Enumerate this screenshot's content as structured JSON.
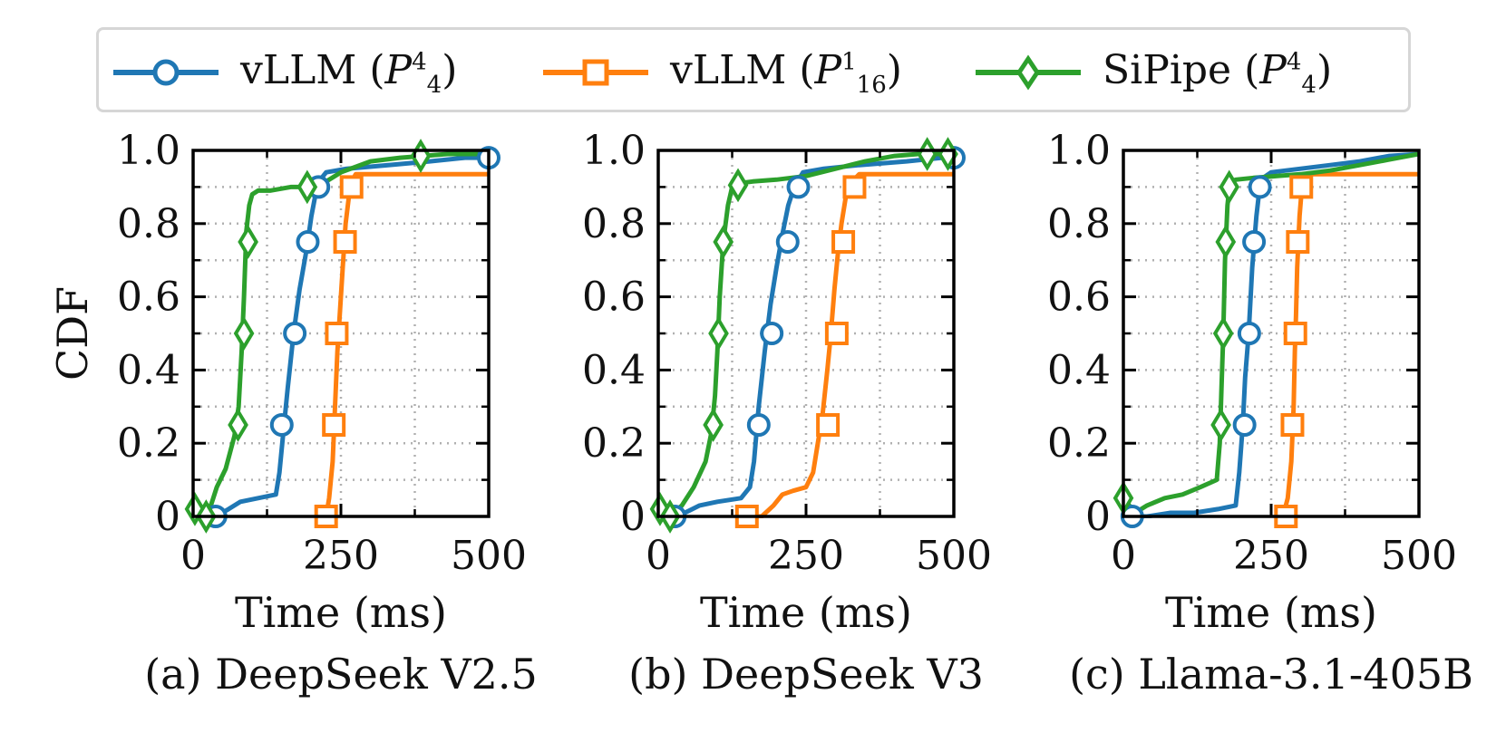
{
  "legend": {
    "entries": [
      {
        "name": "vLLM",
        "label_prefix": "vLLM (",
        "p_sup": "4",
        "p_sub": "4",
        "label_suffix": ")",
        "color": "#1f77b4",
        "marker": "circle"
      },
      {
        "name": "vLLM",
        "label_prefix": "vLLM (",
        "p_sup": "1",
        "p_sub": "16",
        "label_suffix": ")",
        "color": "#ff7f0e",
        "marker": "square"
      },
      {
        "name": "SiPipe",
        "label_prefix": "SiPipe (",
        "p_sup": "4",
        "p_sub": "4",
        "label_suffix": ")",
        "color": "#2ca02c",
        "marker": "diamond"
      }
    ]
  },
  "chart_data": [
    {
      "type": "line",
      "caption": "(a) DeepSeek V2.5",
      "xlabel": "Time (ms)",
      "ylabel": "CDF",
      "xlim": [
        0,
        500
      ],
      "ylim": [
        0,
        1.0
      ],
      "xticks": [
        0,
        250,
        500
      ],
      "yticks": [
        0,
        0.2,
        0.4,
        0.6,
        0.8,
        1.0
      ],
      "ytick_labels": [
        "0",
        "0.2",
        "0.4",
        "0.6",
        "0.8",
        "1.0"
      ],
      "grid": true,
      "series": [
        {
          "name": "vLLM (P44)",
          "color": "#1f77b4",
          "marker": "circle",
          "x": [
            38,
            60,
            80,
            110,
            140,
            146,
            152,
            160,
            170,
            180,
            192,
            200,
            207,
            215,
            225,
            260,
            330,
            400,
            460,
            500
          ],
          "y": [
            0.0,
            0.02,
            0.04,
            0.05,
            0.06,
            0.12,
            0.22,
            0.35,
            0.5,
            0.62,
            0.73,
            0.82,
            0.88,
            0.92,
            0.94,
            0.95,
            0.96,
            0.97,
            0.98,
            0.98
          ],
          "marker_points": [
            [
              38,
              0.0
            ],
            [
              150,
              0.25
            ],
            [
              172,
              0.5
            ],
            [
              194,
              0.75
            ],
            [
              212,
              0.9
            ],
            [
              500,
              0.98
            ]
          ]
        },
        {
          "name": "vLLM (P116)",
          "color": "#ff7f0e",
          "marker": "square",
          "x": [
            225,
            230,
            236,
            240,
            244,
            248,
            253,
            258,
            264,
            270,
            275,
            500
          ],
          "y": [
            0.0,
            0.05,
            0.15,
            0.3,
            0.45,
            0.55,
            0.68,
            0.8,
            0.88,
            0.92,
            0.935,
            0.935
          ],
          "marker_points": [
            [
              225,
              0.0
            ],
            [
              238,
              0.25
            ],
            [
              243,
              0.5
            ],
            [
              257,
              0.75
            ],
            [
              268,
              0.9
            ]
          ]
        },
        {
          "name": "SiPipe (P44)",
          "color": "#2ca02c",
          "marker": "diamond",
          "x": [
            3,
            15,
            22,
            30,
            40,
            55,
            70,
            77,
            82,
            86,
            90,
            95,
            100,
            110,
            130,
            165,
            195,
            220,
            250,
            300,
            350,
            390,
            430,
            500
          ],
          "y": [
            0.02,
            0.0,
            0.0,
            0.03,
            0.08,
            0.13,
            0.22,
            0.3,
            0.45,
            0.6,
            0.78,
            0.85,
            0.88,
            0.89,
            0.89,
            0.9,
            0.9,
            0.91,
            0.94,
            0.97,
            0.98,
            0.985,
            0.99,
            0.99
          ],
          "marker_points": [
            [
              3,
              0.02
            ],
            [
              22,
              0.0
            ],
            [
              76,
              0.25
            ],
            [
              86,
              0.5
            ],
            [
              93,
              0.75
            ],
            [
              193,
              0.9
            ],
            [
              385,
              0.985
            ]
          ]
        }
      ]
    },
    {
      "type": "line",
      "caption": "(b) DeepSeek V3",
      "xlabel": "Time (ms)",
      "ylabel": "",
      "xlim": [
        0,
        500
      ],
      "ylim": [
        0,
        1.0
      ],
      "xticks": [
        0,
        250,
        500
      ],
      "yticks": [
        0,
        0.2,
        0.4,
        0.6,
        0.8,
        1.0
      ],
      "ytick_labels": [
        "0",
        "0.2",
        "0.4",
        "0.6",
        "0.8",
        "1.0"
      ],
      "grid": true,
      "series": [
        {
          "name": "vLLM (P44)",
          "color": "#1f77b4",
          "marker": "circle",
          "x": [
            28,
            45,
            70,
            100,
            140,
            155,
            162,
            170,
            180,
            190,
            200,
            210,
            220,
            230,
            245,
            280,
            340,
            420,
            480,
            500
          ],
          "y": [
            0.0,
            0.01,
            0.03,
            0.04,
            0.05,
            0.08,
            0.15,
            0.3,
            0.45,
            0.58,
            0.68,
            0.77,
            0.85,
            0.9,
            0.94,
            0.95,
            0.96,
            0.97,
            0.98,
            0.98
          ],
          "marker_points": [
            [
              28,
              0.0
            ],
            [
              170,
              0.25
            ],
            [
              192,
              0.5
            ],
            [
              219,
              0.75
            ],
            [
              237,
              0.9
            ],
            [
              500,
              0.98
            ]
          ]
        },
        {
          "name": "vLLM (P116)",
          "color": "#ff7f0e",
          "marker": "square",
          "x": [
            150,
            175,
            195,
            210,
            228,
            250,
            262,
            270,
            278,
            286,
            292,
            298,
            304,
            310,
            318,
            325,
            340,
            500
          ],
          "y": [
            0.0,
            0.0,
            0.03,
            0.06,
            0.07,
            0.08,
            0.12,
            0.2,
            0.28,
            0.4,
            0.5,
            0.62,
            0.72,
            0.8,
            0.88,
            0.91,
            0.935,
            0.935
          ],
          "marker_points": [
            [
              150,
              0.0
            ],
            [
              287,
              0.25
            ],
            [
              302,
              0.5
            ],
            [
              313,
              0.75
            ],
            [
              332,
              0.9
            ]
          ]
        },
        {
          "name": "SiPipe (P44)",
          "color": "#2ca02c",
          "marker": "diamond",
          "x": [
            3,
            15,
            25,
            40,
            60,
            80,
            90,
            96,
            100,
            104,
            110,
            118,
            125,
            135,
            160,
            200,
            250,
            300,
            350,
            400,
            440,
            470,
            500
          ],
          "y": [
            0.02,
            0.0,
            0.01,
            0.03,
            0.08,
            0.15,
            0.23,
            0.33,
            0.45,
            0.6,
            0.75,
            0.85,
            0.9,
            0.91,
            0.915,
            0.92,
            0.93,
            0.95,
            0.97,
            0.985,
            0.99,
            0.99,
            0.99
          ],
          "marker_points": [
            [
              3,
              0.02
            ],
            [
              20,
              0.0
            ],
            [
              93,
              0.25
            ],
            [
              102,
              0.5
            ],
            [
              110,
              0.75
            ],
            [
              135,
              0.905
            ],
            [
              455,
              0.99
            ],
            [
              490,
              0.99
            ]
          ]
        }
      ]
    },
    {
      "type": "line",
      "caption": "(c) Llama-3.1-405B",
      "xlabel": "Time (ms)",
      "ylabel": "",
      "xlim": [
        0,
        500
      ],
      "ylim": [
        0,
        1.0
      ],
      "xticks": [
        0,
        250,
        500
      ],
      "yticks": [
        0,
        0.2,
        0.4,
        0.6,
        0.8,
        1.0
      ],
      "ytick_labels": [
        "0",
        "0.2",
        "0.4",
        "0.6",
        "0.8",
        "1.0"
      ],
      "grid": true,
      "series": [
        {
          "name": "vLLM (P44)",
          "color": "#1f77b4",
          "marker": "circle",
          "x": [
            15,
            40,
            80,
            120,
            160,
            190,
            196,
            202,
            206,
            212,
            218,
            225,
            232,
            250,
            300,
            350,
            400,
            450,
            500
          ],
          "y": [
            0.0,
            0.0,
            0.01,
            0.01,
            0.02,
            0.03,
            0.12,
            0.25,
            0.38,
            0.5,
            0.68,
            0.82,
            0.92,
            0.94,
            0.95,
            0.96,
            0.97,
            0.985,
            0.99
          ],
          "marker_points": [
            [
              15,
              0.0
            ],
            [
              205,
              0.25
            ],
            [
              213,
              0.5
            ],
            [
              221,
              0.75
            ],
            [
              231,
              0.9
            ]
          ]
        },
        {
          "name": "vLLM (P116)",
          "color": "#ff7f0e",
          "marker": "square",
          "x": [
            270,
            278,
            284,
            288,
            290,
            292,
            294,
            298,
            302,
            310,
            500
          ],
          "y": [
            0.0,
            0.05,
            0.15,
            0.3,
            0.45,
            0.55,
            0.68,
            0.82,
            0.9,
            0.935,
            0.935
          ],
          "marker_points": [
            [
              275,
              0.0
            ],
            [
              286,
              0.25
            ],
            [
              291,
              0.5
            ],
            [
              295,
              0.75
            ],
            [
              301,
              0.9
            ]
          ]
        },
        {
          "name": "SiPipe (P44)",
          "color": "#2ca02c",
          "marker": "diamond",
          "x": [
            0,
            20,
            40,
            70,
            100,
            130,
            158,
            163,
            166,
            169,
            172,
            176,
            180,
            190,
            220,
            260,
            300,
            350,
            400,
            450,
            500
          ],
          "y": [
            0.05,
            0.01,
            0.03,
            0.05,
            0.06,
            0.08,
            0.1,
            0.2,
            0.35,
            0.5,
            0.7,
            0.85,
            0.91,
            0.92,
            0.925,
            0.93,
            0.935,
            0.945,
            0.96,
            0.975,
            0.99
          ],
          "marker_points": [
            [
              0,
              0.05
            ],
            [
              165,
              0.25
            ],
            [
              169,
              0.5
            ],
            [
              173,
              0.75
            ],
            [
              179,
              0.9
            ]
          ]
        }
      ]
    }
  ]
}
